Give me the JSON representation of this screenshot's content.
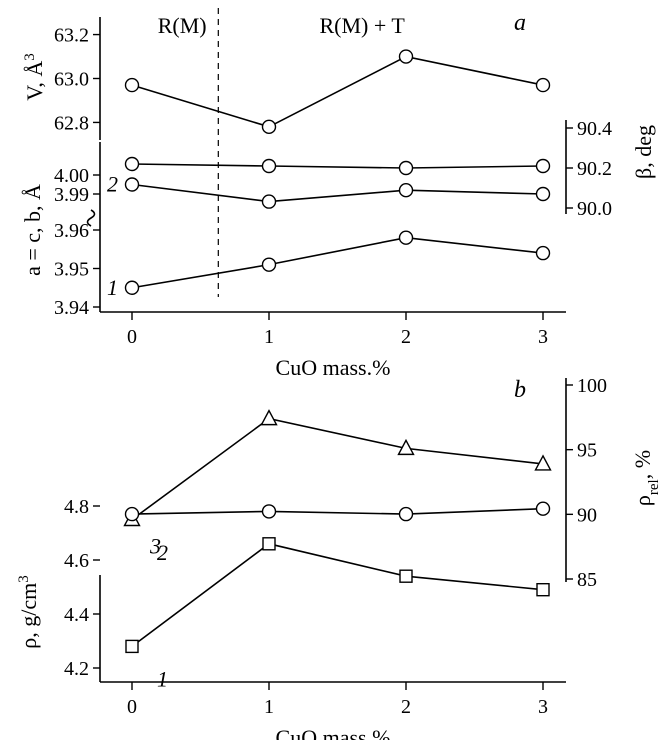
{
  "chart_data": [
    {
      "panel": "a",
      "type": "line",
      "x": [
        0,
        1,
        2,
        3
      ],
      "xlabel": "CuO mass.%",
      "xticks": [
        "0",
        "1",
        "2",
        "3"
      ],
      "regions": [
        {
          "label": "R(M)"
        },
        {
          "label": "R(M) + T"
        }
      ],
      "region_boundary_x": 0.63,
      "subplots": [
        {
          "ylabel": "V, Å3",
          "ylim": [
            62.72,
            63.28
          ],
          "yticks": [
            "62.8",
            "63.0",
            "63.2"
          ],
          "ytick_values": [
            62.8,
            63.0,
            63.2
          ],
          "series": [
            {
              "values": [
                62.97,
                62.78,
                63.1,
                62.97
              ],
              "marker": "circle"
            }
          ]
        },
        {
          "ylabel": "a = c, b, Å",
          "ylim": [
            3.938,
            4.008
          ],
          "yticks": [
            "3.94",
            "3.95",
            "3.96",
            "3.99",
            "4.00"
          ],
          "ytick_values": [
            3.94,
            3.95,
            3.96,
            3.99,
            4.0
          ],
          "axis_break": true,
          "series": [
            {
              "name": "1",
              "values": [
                3.945,
                3.951,
                3.958,
                3.954
              ],
              "marker": "circle"
            },
            {
              "name": "2",
              "values": [
                3.995,
                3.986,
                3.992,
                3.99
              ],
              "marker": "circle"
            }
          ]
        },
        {
          "ylabel": "β, deg",
          "axis_side": "right",
          "ylim": [
            89.6,
            90.5
          ],
          "yticks": [
            "90.0",
            "90.2",
            "90.4"
          ],
          "ytick_values": [
            90.0,
            90.2,
            90.4
          ],
          "series": [
            {
              "values": [
                90.22,
                90.21,
                90.2,
                90.21
              ],
              "marker": "circle"
            }
          ]
        }
      ]
    },
    {
      "panel": "b",
      "type": "line",
      "x": [
        0,
        1,
        2,
        3
      ],
      "xlabel": "CuO mass.%",
      "xticks": [
        "0",
        "1",
        "2",
        "3"
      ],
      "subplots": [
        {
          "ylabel": "ρrel, %",
          "axis_side": "right",
          "ylim": [
            84.5,
            100.5
          ],
          "yticks": [
            "85",
            "90",
            "95",
            "100"
          ],
          "ytick_values": [
            85,
            90,
            95,
            100
          ],
          "series": [
            {
              "name": "3",
              "values": [
                89.6,
                97.4,
                95.1,
                93.9
              ],
              "marker": "triangle"
            }
          ]
        },
        {
          "ylabel": "ρ, g/cm3",
          "ylim": [
            4.14,
            4.87
          ],
          "yticks": [
            "4.2",
            "4.4",
            "4.6",
            "4.8"
          ],
          "ytick_values": [
            4.2,
            4.4,
            4.6,
            4.8
          ],
          "series": [
            {
              "name": "1",
              "values": [
                4.28,
                4.66,
                4.54,
                4.49
              ],
              "marker": "square"
            },
            {
              "name": "2",
              "values": [
                4.77,
                4.78,
                4.77,
                4.79
              ],
              "marker": "circle"
            }
          ]
        }
      ]
    }
  ]
}
